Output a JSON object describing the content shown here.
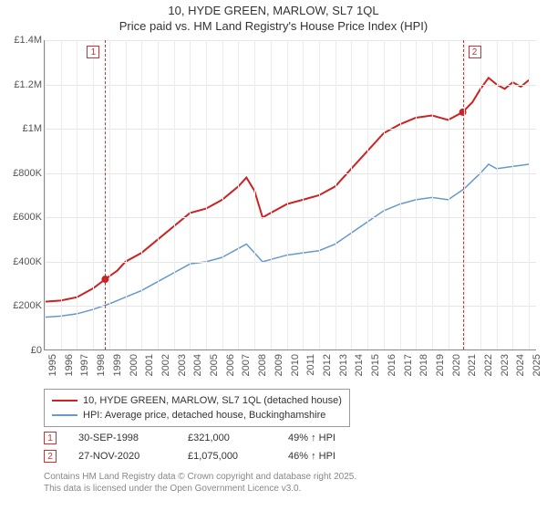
{
  "titles": {
    "main": "10, HYDE GREEN, MARLOW, SL7 1QL",
    "sub": "Price paid vs. HM Land Registry's House Price Index (HPI)"
  },
  "chart": {
    "type": "line",
    "background_color": "#ffffff",
    "grid_color": "#e6e6e6",
    "axis_color": "#888888",
    "xlim": [
      1995,
      2025.5
    ],
    "ylim": [
      0,
      1400000
    ],
    "ytick_step": 200000,
    "yticks": [
      {
        "v": 0,
        "label": "£0"
      },
      {
        "v": 200000,
        "label": "£200K"
      },
      {
        "v": 400000,
        "label": "£400K"
      },
      {
        "v": 600000,
        "label": "£600K"
      },
      {
        "v": 800000,
        "label": "£800K"
      },
      {
        "v": 1000000,
        "label": "£1M"
      },
      {
        "v": 1200000,
        "label": "£1.2M"
      },
      {
        "v": 1400000,
        "label": "£1.4M"
      }
    ],
    "xticks": [
      1995,
      1996,
      1997,
      1998,
      1999,
      2000,
      2001,
      2002,
      2003,
      2004,
      2005,
      2006,
      2007,
      2008,
      2009,
      2010,
      2011,
      2012,
      2013,
      2014,
      2015,
      2016,
      2017,
      2018,
      2019,
      2020,
      2021,
      2022,
      2023,
      2024,
      2025
    ],
    "tick_fontsize": 11,
    "tick_color": "#555555",
    "series": [
      {
        "name": "price_paid",
        "label": "10, HYDE GREEN, MARLOW, SL7 1QL (detached house)",
        "color": "#cc2222",
        "line_width": 2,
        "data": [
          [
            1995,
            220000
          ],
          [
            1996,
            225000
          ],
          [
            1997,
            240000
          ],
          [
            1998,
            280000
          ],
          [
            1998.75,
            321000
          ],
          [
            1999.5,
            360000
          ],
          [
            2000,
            400000
          ],
          [
            2001,
            440000
          ],
          [
            2002,
            500000
          ],
          [
            2003,
            560000
          ],
          [
            2004,
            620000
          ],
          [
            2005,
            640000
          ],
          [
            2006,
            680000
          ],
          [
            2007,
            740000
          ],
          [
            2007.5,
            780000
          ],
          [
            2008,
            720000
          ],
          [
            2008.5,
            600000
          ],
          [
            2009,
            620000
          ],
          [
            2010,
            660000
          ],
          [
            2011,
            680000
          ],
          [
            2012,
            700000
          ],
          [
            2013,
            740000
          ],
          [
            2014,
            820000
          ],
          [
            2015,
            900000
          ],
          [
            2016,
            980000
          ],
          [
            2017,
            1020000
          ],
          [
            2018,
            1050000
          ],
          [
            2019,
            1060000
          ],
          [
            2020,
            1040000
          ],
          [
            2020.9,
            1075000
          ],
          [
            2021.5,
            1120000
          ],
          [
            2022,
            1180000
          ],
          [
            2022.5,
            1230000
          ],
          [
            2023,
            1200000
          ],
          [
            2023.5,
            1180000
          ],
          [
            2024,
            1210000
          ],
          [
            2024.5,
            1190000
          ],
          [
            2025,
            1220000
          ]
        ],
        "markers": [
          {
            "id": "1",
            "x": 1998.75,
            "y": 321000
          },
          {
            "id": "2",
            "x": 2020.9,
            "y": 1075000
          }
        ]
      },
      {
        "name": "hpi",
        "label": "HPI: Average price, detached house, Buckinghamshire",
        "color": "#6699cc",
        "line_width": 1.5,
        "data": [
          [
            1995,
            150000
          ],
          [
            1996,
            155000
          ],
          [
            1997,
            165000
          ],
          [
            1998,
            185000
          ],
          [
            1999,
            210000
          ],
          [
            2000,
            240000
          ],
          [
            2001,
            270000
          ],
          [
            2002,
            310000
          ],
          [
            2003,
            350000
          ],
          [
            2004,
            390000
          ],
          [
            2005,
            400000
          ],
          [
            2006,
            420000
          ],
          [
            2007,
            460000
          ],
          [
            2007.5,
            480000
          ],
          [
            2008,
            440000
          ],
          [
            2008.5,
            400000
          ],
          [
            2009,
            410000
          ],
          [
            2010,
            430000
          ],
          [
            2011,
            440000
          ],
          [
            2012,
            450000
          ],
          [
            2013,
            480000
          ],
          [
            2014,
            530000
          ],
          [
            2015,
            580000
          ],
          [
            2016,
            630000
          ],
          [
            2017,
            660000
          ],
          [
            2018,
            680000
          ],
          [
            2019,
            690000
          ],
          [
            2020,
            680000
          ],
          [
            2021,
            730000
          ],
          [
            2022,
            800000
          ],
          [
            2022.5,
            840000
          ],
          [
            2023,
            820000
          ],
          [
            2024,
            830000
          ],
          [
            2025,
            840000
          ]
        ]
      }
    ]
  },
  "legend": {
    "border_color": "#999999",
    "fontsize": 11
  },
  "events": [
    {
      "id": "1",
      "date": "30-SEP-1998",
      "price": "£321,000",
      "pct": "49% ↑ HPI"
    },
    {
      "id": "2",
      "date": "27-NOV-2020",
      "price": "£1,075,000",
      "pct": "46% ↑ HPI"
    }
  ],
  "footer": {
    "line1": "Contains HM Land Registry data © Crown copyright and database right 2025.",
    "line2": "This data is licensed under the Open Government Licence v3.0."
  }
}
